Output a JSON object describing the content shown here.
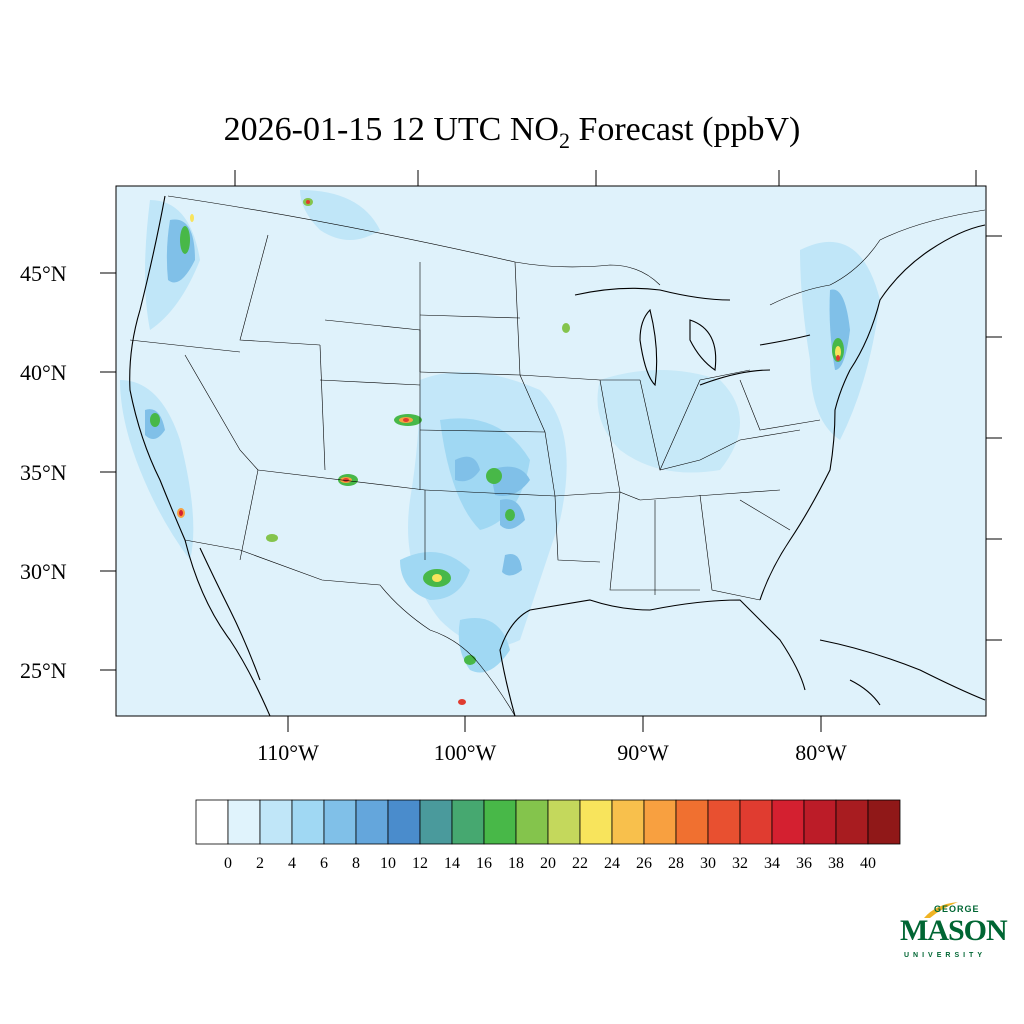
{
  "title": {
    "prefix": "2026-01-15 12 UTC NO",
    "subscript": "2",
    "suffix": " Forecast (ppbV)"
  },
  "axes": {
    "lat_labels": [
      "45°N",
      "40°N",
      "35°N",
      "30°N",
      "25°N"
    ],
    "lon_labels": [
      "110°W",
      "100°W",
      "90°W",
      "80°W"
    ]
  },
  "colorbar": {
    "labels": [
      "0",
      "2",
      "4",
      "6",
      "8",
      "10",
      "12",
      "14",
      "16",
      "18",
      "20",
      "22",
      "24",
      "26",
      "28",
      "30",
      "32",
      "34",
      "36",
      "38",
      "40"
    ],
    "colors": [
      "#ffffff",
      "#e0f3fc",
      "#c0e6f8",
      "#a0d8f3",
      "#80c0e8",
      "#64a6dc",
      "#4a8ccc",
      "#4a9a9c",
      "#46a870",
      "#48b848",
      "#84c44c",
      "#c4d85c",
      "#f8e45c",
      "#f8c04c",
      "#f8a040",
      "#f07030",
      "#e85030",
      "#e03c30",
      "#d42030",
      "#bc1c28",
      "#a81c20",
      "#901818"
    ]
  },
  "logo": {
    "george": "GEORGE",
    "mason": "MASON",
    "university": "UNIVERSITY"
  },
  "colors": {
    "background_fill": "#dff2fb",
    "light_blue": "#c0e6f8",
    "mid_blue": "#9fd4f2",
    "brand_green": "#006633",
    "brand_gold": "#f0b323"
  }
}
